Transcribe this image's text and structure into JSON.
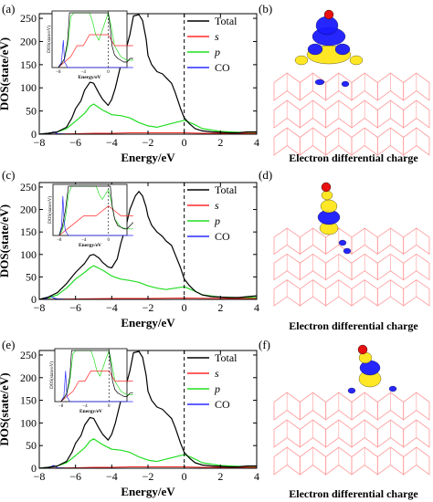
{
  "figure": {
    "xlabel": "Energy/eV",
    "ylabel": "DOS(state/eV)",
    "inset_xlabel": "Energy/eV",
    "inset_ylabel": "DOS(state/eV)",
    "xticks": [
      -8,
      -6,
      -4,
      -2,
      0,
      2,
      4
    ],
    "yticks": [
      0,
      50,
      100,
      150,
      200,
      250
    ],
    "inset_xticks": [
      -8,
      -4,
      0
    ],
    "legend": [
      "Total",
      "s",
      "p",
      "CO"
    ],
    "colors": {
      "Total": "#000000",
      "s": "#ff2a2a",
      "p": "#22dd22",
      "CO": "#2a2aff",
      "frame": "#ff9a9a",
      "iso_blue": "#1a1aff",
      "iso_yellow": "#ffe61a"
    },
    "caption": "Electron differential charge",
    "panel_letters": [
      "(a)",
      "(b)",
      "(c)",
      "(d)",
      "(e)",
      "(f)"
    ]
  },
  "chart_data": [
    {
      "type": "line",
      "panel": "(a)",
      "xlabel": "Energy/eV",
      "ylabel": "DOS(state/eV)",
      "xlim": [
        -8,
        4
      ],
      "ylim": [
        0,
        260
      ],
      "fermi_level": 0,
      "series": [
        {
          "name": "Total",
          "x": [
            -8,
            -7.5,
            -7,
            -6.5,
            -6.2,
            -6,
            -5.7,
            -5.5,
            -5.2,
            -5,
            -4.7,
            -4.5,
            -4.2,
            -4,
            -3.8,
            -3.5,
            -3.2,
            -3,
            -2.8,
            -2.5,
            -2.3,
            -2.1,
            -2,
            -1.8,
            -1.5,
            -1.2,
            -1,
            -0.7,
            -0.5,
            -0.2,
            0,
            0.3,
            0.6,
            1,
            1.5,
            2,
            2.5,
            3,
            3.5,
            4
          ],
          "y": [
            0,
            2,
            5,
            15,
            35,
            55,
            72,
            95,
            112,
            110,
            88,
            75,
            62,
            75,
            100,
            150,
            185,
            215,
            255,
            258,
            245,
            205,
            170,
            150,
            135,
            130,
            122,
            110,
            90,
            55,
            35,
            22,
            12,
            7,
            5,
            4,
            3,
            3,
            5,
            5
          ]
        },
        {
          "name": "s",
          "x": [
            -8,
            -6,
            -5,
            -4,
            -3,
            -2,
            -1,
            0,
            1,
            2,
            3,
            4
          ],
          "y": [
            0,
            1,
            2,
            2,
            3,
            3,
            3,
            3,
            2,
            2,
            2,
            2
          ]
        },
        {
          "name": "p",
          "x": [
            -8,
            -7.5,
            -7,
            -6.5,
            -6,
            -5.5,
            -5.2,
            -5,
            -4.5,
            -4,
            -3.5,
            -3,
            -2.5,
            -2,
            -1.5,
            -1,
            -0.5,
            0,
            0.5,
            1,
            2,
            3,
            4
          ],
          "y": [
            0,
            2,
            5,
            12,
            28,
            45,
            60,
            65,
            52,
            42,
            40,
            35,
            25,
            18,
            15,
            20,
            25,
            30,
            22,
            12,
            6,
            4,
            4
          ]
        },
        {
          "name": "CO",
          "x": [
            -8,
            -7.5,
            -7.2,
            -7,
            -6.5,
            -6,
            -5,
            -4,
            -3,
            -2,
            -1,
            0,
            1,
            2,
            3,
            4
          ],
          "y": [
            0,
            1,
            5,
            1,
            0,
            0,
            0,
            0,
            0,
            0,
            0,
            0,
            0,
            0,
            0,
            0
          ]
        }
      ]
    },
    {
      "type": "line",
      "panel": "(c)",
      "xlabel": "Energy/eV",
      "ylabel": "DOS(state/eV)",
      "xlim": [
        -8,
        4
      ],
      "ylim": [
        0,
        260
      ],
      "fermi_level": 0,
      "series": [
        {
          "name": "Total",
          "x": [
            -8,
            -7.5,
            -7,
            -6.5,
            -6,
            -5.5,
            -5.2,
            -5,
            -4.7,
            -4.5,
            -4.2,
            -4,
            -3.7,
            -3.5,
            -3.2,
            -3,
            -2.7,
            -2.5,
            -2.3,
            -2.1,
            -2,
            -1.8,
            -1.5,
            -1.2,
            -1,
            -0.7,
            -0.5,
            -0.2,
            0,
            0.3,
            0.6,
            1,
            1.5,
            2,
            2.5,
            3,
            3.5,
            4
          ],
          "y": [
            0,
            5,
            15,
            35,
            60,
            80,
            98,
            100,
            92,
            82,
            72,
            70,
            90,
            125,
            165,
            200,
            230,
            240,
            230,
            205,
            185,
            165,
            150,
            140,
            130,
            120,
            100,
            70,
            45,
            30,
            18,
            10,
            6,
            5,
            4,
            4,
            6,
            8
          ]
        },
        {
          "name": "s",
          "x": [
            -8,
            -6,
            -4,
            -2,
            0,
            2,
            4
          ],
          "y": [
            0,
            1,
            2,
            2,
            3,
            2,
            2
          ]
        },
        {
          "name": "p",
          "x": [
            -8,
            -7.5,
            -7,
            -6.5,
            -6,
            -5.5,
            -5.2,
            -5,
            -4.5,
            -4,
            -3.5,
            -3,
            -2.5,
            -2,
            -1.5,
            -1,
            -0.5,
            0,
            0.5,
            1,
            2,
            3,
            4
          ],
          "y": [
            0,
            3,
            10,
            25,
            45,
            60,
            70,
            75,
            65,
            52,
            45,
            42,
            38,
            30,
            25,
            22,
            25,
            28,
            20,
            10,
            5,
            4,
            4
          ]
        },
        {
          "name": "CO",
          "x": [
            -8,
            -7.6,
            -7.4,
            -7.2,
            -7,
            -6.5,
            -6,
            -4,
            -2,
            0,
            2,
            4
          ],
          "y": [
            0,
            2,
            8,
            3,
            1,
            0,
            0,
            0,
            0,
            0,
            0,
            0
          ]
        }
      ]
    },
    {
      "type": "line",
      "panel": "(e)",
      "xlabel": "Energy/eV",
      "ylabel": "DOS(state/eV)",
      "xlim": [
        -8,
        4
      ],
      "ylim": [
        0,
        260
      ],
      "fermi_level": 0,
      "series": [
        {
          "name": "Total",
          "x": [
            -8,
            -7.5,
            -7,
            -6.5,
            -6.2,
            -6,
            -5.7,
            -5.5,
            -5.2,
            -5,
            -4.7,
            -4.5,
            -4.2,
            -4,
            -3.8,
            -3.5,
            -3.2,
            -3,
            -2.8,
            -2.5,
            -2.3,
            -2.1,
            -2,
            -1.8,
            -1.5,
            -1.2,
            -1,
            -0.7,
            -0.5,
            -0.2,
            0,
            0.3,
            0.6,
            1,
            1.5,
            2,
            2.5,
            3,
            3.5,
            4
          ],
          "y": [
            0,
            2,
            5,
            15,
            35,
            55,
            72,
            95,
            112,
            110,
            88,
            75,
            62,
            75,
            100,
            150,
            185,
            215,
            255,
            258,
            245,
            205,
            170,
            150,
            135,
            130,
            122,
            110,
            90,
            55,
            35,
            22,
            12,
            7,
            5,
            4,
            3,
            3,
            5,
            5
          ]
        },
        {
          "name": "s",
          "x": [
            -8,
            -6,
            -5,
            -4,
            -3,
            -2,
            -1,
            0,
            1,
            2,
            3,
            4
          ],
          "y": [
            0,
            1,
            2,
            2,
            3,
            3,
            3,
            3,
            2,
            2,
            2,
            2
          ]
        },
        {
          "name": "p",
          "x": [
            -8,
            -7.5,
            -7,
            -6.5,
            -6,
            -5.5,
            -5.2,
            -5,
            -4.5,
            -4,
            -3.5,
            -3,
            -2.5,
            -2,
            -1.5,
            -1,
            -0.5,
            0,
            0.5,
            1,
            2,
            3,
            4
          ],
          "y": [
            0,
            2,
            5,
            12,
            28,
            45,
            60,
            65,
            52,
            42,
            40,
            35,
            25,
            18,
            15,
            20,
            25,
            30,
            22,
            12,
            6,
            4,
            4
          ]
        },
        {
          "name": "CO",
          "x": [
            -8,
            -7.5,
            -7.2,
            -7,
            -6.5,
            -6,
            -5,
            -4,
            -3,
            -2,
            -1,
            0,
            1,
            2,
            3,
            4
          ],
          "y": [
            0,
            1,
            6,
            1,
            0,
            0,
            0,
            0,
            0,
            0,
            0,
            0,
            0,
            0,
            0,
            0
          ]
        }
      ]
    }
  ]
}
